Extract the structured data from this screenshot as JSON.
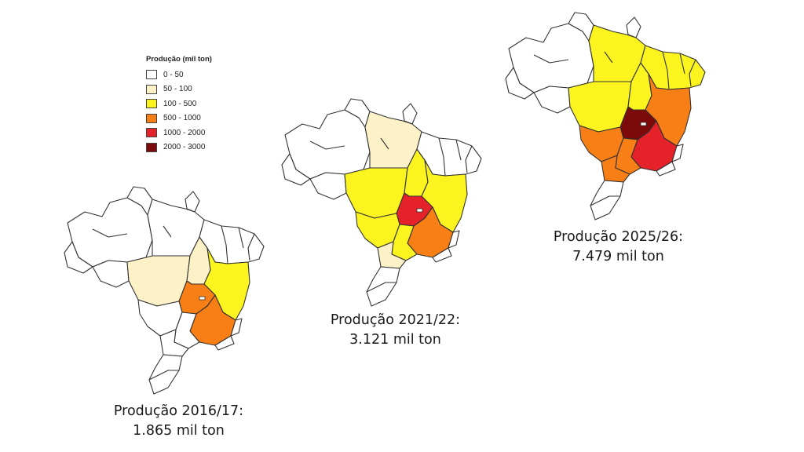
{
  "legend": {
    "title": "Produção (mil ton)",
    "classes": [
      {
        "label": "0 - 50",
        "color": "#ffffff"
      },
      {
        "label": "50 - 100",
        "color": "#fdf2c7"
      },
      {
        "label": "100 - 500",
        "color": "#fbf41e"
      },
      {
        "label": "500 - 1000",
        "color": "#f87f15"
      },
      {
        "label": "1000 - 2000",
        "color": "#e5212a"
      },
      {
        "label": "2000 - 3000",
        "color": "#7d0a0a"
      }
    ]
  },
  "maps": [
    {
      "caption_line1": "Produção 2016/17:",
      "caption_line2": "1.865 mil ton",
      "regions": {
        "am": 0,
        "pa": 0,
        "mt": 1,
        "to": 1,
        "ba": 2,
        "go": 3,
        "mg": 3,
        "ms": 0,
        "sp": 0,
        "pr": 0,
        "ne": 0,
        "south": 0
      }
    },
    {
      "caption_line1": "Produção 2021/22:",
      "caption_line2": "3.121 mil ton",
      "regions": {
        "am": 0,
        "pa": 1,
        "mt": 2,
        "to": 2,
        "ba": 2,
        "go": 4,
        "mg": 3,
        "ms": 2,
        "sp": 2,
        "pr": 1,
        "ne": 0,
        "south": 0
      }
    },
    {
      "caption_line1": "Produção 2025/26:",
      "caption_line2": "7.479 mil ton",
      "regions": {
        "am": 0,
        "pa": 2,
        "mt": 2,
        "to": 2,
        "ba": 3,
        "go": 5,
        "mg": 4,
        "ms": 3,
        "sp": 3,
        "pr": 3,
        "ne": 2,
        "south": 0
      }
    }
  ]
}
